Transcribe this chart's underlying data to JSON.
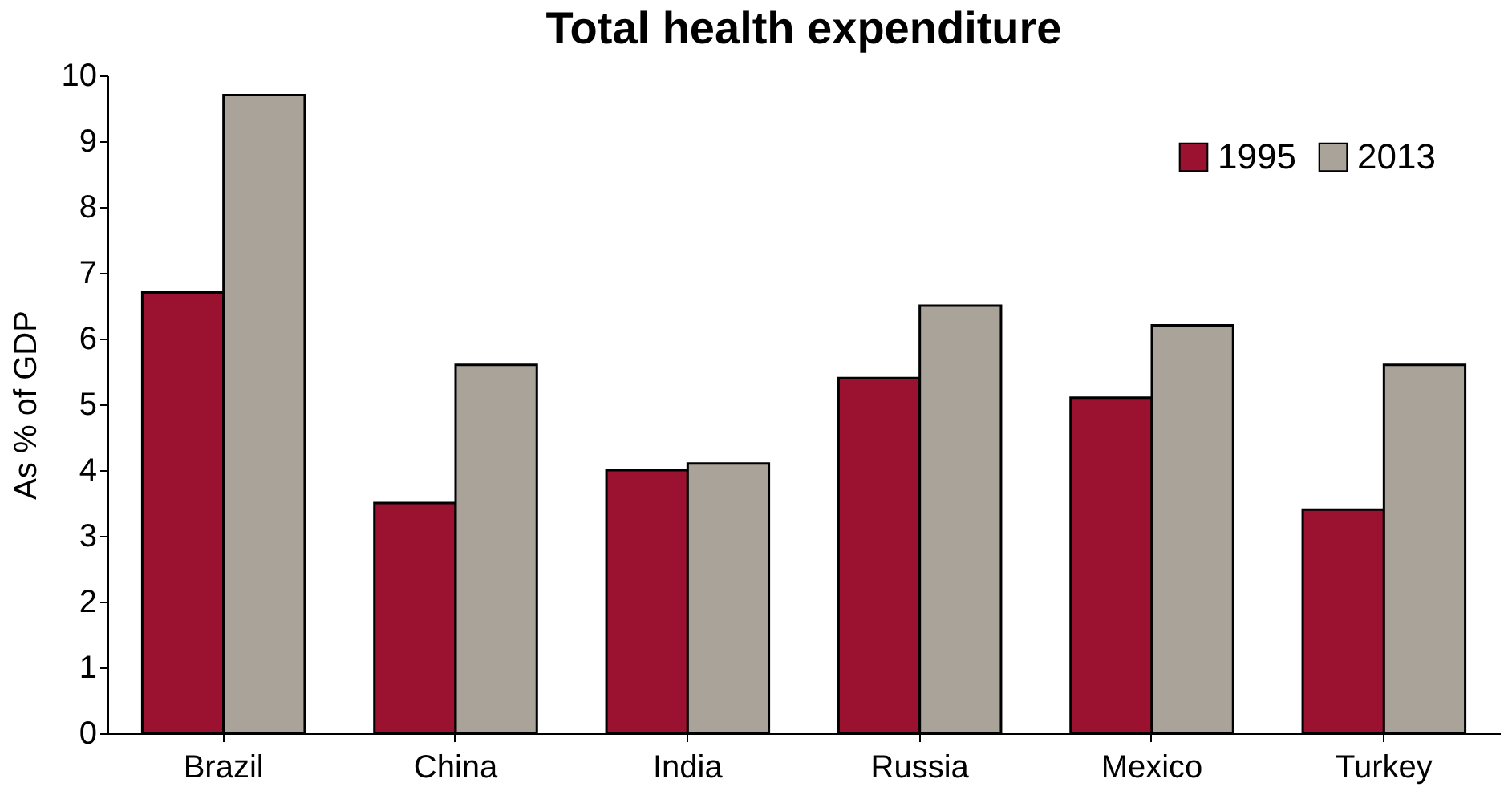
{
  "chart_data": {
    "type": "bar",
    "title": "Total health expenditure",
    "ylabel": "As % of GDP",
    "categories": [
      "Brazil",
      "China",
      "India",
      "Russia",
      "Mexico",
      "Turkey"
    ],
    "series": [
      {
        "name": "1995",
        "color": "#9b1230",
        "values": [
          6.7,
          3.5,
          4.0,
          5.4,
          5.1,
          3.4
        ]
      },
      {
        "name": "2013",
        "color": "#aaa39a",
        "values": [
          9.7,
          5.6,
          4.1,
          6.5,
          6.2,
          5.6
        ]
      }
    ],
    "ylim": [
      0,
      10
    ],
    "yticks": [
      0,
      1,
      2,
      3,
      4,
      5,
      6,
      7,
      8,
      9,
      10
    ],
    "grid": false,
    "legend": "top right"
  }
}
